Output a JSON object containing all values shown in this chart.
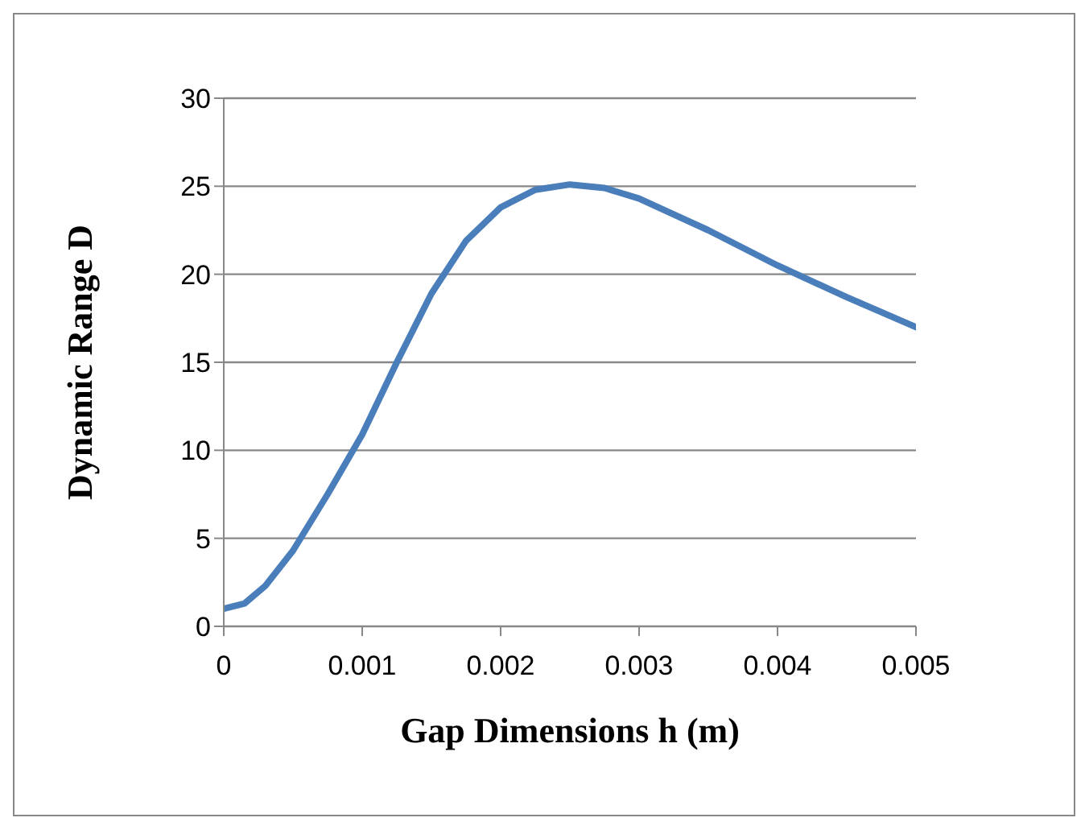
{
  "chart_data": {
    "type": "line",
    "xlabel": "Gap Dimensions h (m)",
    "ylabel": "Dynamic Range D",
    "x": [
      0,
      0.00015,
      0.0003,
      0.0005,
      0.00075,
      0.001,
      0.00125,
      0.0015,
      0.00175,
      0.002,
      0.00225,
      0.0025,
      0.00275,
      0.003,
      0.0035,
      0.004,
      0.0045,
      0.005
    ],
    "series": [
      {
        "color": "#4a7ebb",
        "values": [
          1.0,
          1.3,
          2.3,
          4.3,
          7.5,
          10.9,
          15.0,
          18.9,
          21.9,
          23.8,
          24.8,
          25.1,
          24.9,
          24.3,
          22.5,
          20.5,
          18.7,
          17.0
        ]
      }
    ],
    "xlim": [
      0,
      0.005
    ],
    "xticks": [
      0,
      0.001,
      0.002,
      0.003,
      0.004,
      0.005
    ],
    "ylim": [
      0,
      30
    ],
    "yticks": [
      0,
      5,
      10,
      15,
      20,
      25,
      30
    ],
    "grid": "y",
    "legend": false,
    "marker": "none",
    "line_style": "solid"
  }
}
